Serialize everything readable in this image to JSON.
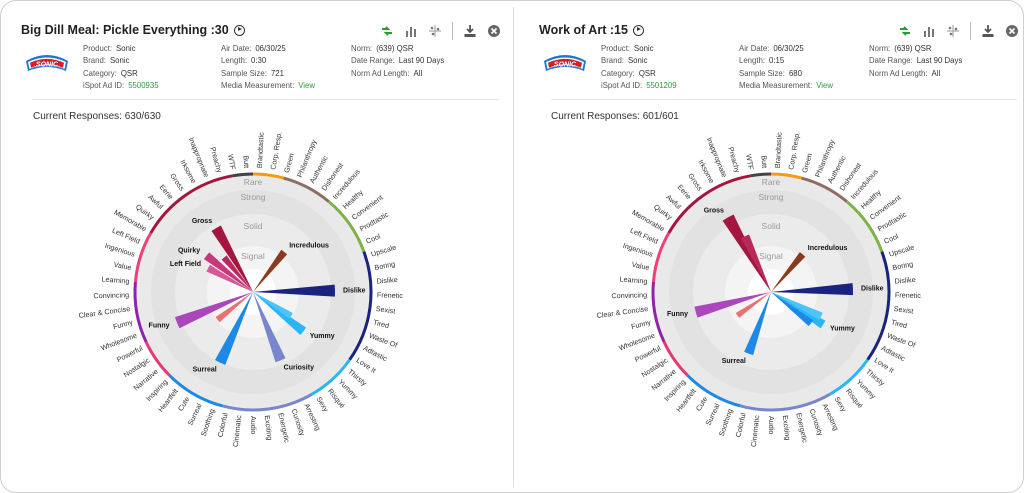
{
  "panels": [
    {
      "title": "Big Dill Meal: Pickle Everything :30",
      "logo_text": "SONIC",
      "meta": {
        "product_label": "Product:",
        "product": "Sonic",
        "brand_label": "Brand:",
        "brand": "Sonic",
        "category_label": "Category:",
        "category": "QSR",
        "ad_id_label": "iSpot Ad ID:",
        "ad_id": "5500935",
        "air_date_label": "Air Date:",
        "air_date": "06/30/25",
        "length_label": "Length:",
        "length": "0:30",
        "sample_label": "Sample Size:",
        "sample": "721",
        "media_label": "Media Measurement:",
        "media": "View",
        "norm_label": "Norm:",
        "norm": "(639) QSR",
        "date_range_label": "Date Range:",
        "date_range": "Last 90 Days",
        "norm_len_label": "Norm Ad Length:",
        "norm_len": "All"
      },
      "responses": "Current Responses: 630/630",
      "spikes": [
        {
          "label": "Gross",
          "angle": -30,
          "value": 0.9,
          "color": "#a3173f",
          "labeled": true
        },
        {
          "label": "Quirky",
          "angle": -52,
          "value": 0.72,
          "color": "#c8367b",
          "labeled": true
        },
        {
          "label": "Left Field",
          "angle": -62,
          "value": 0.62,
          "color": "#d45a96",
          "labeled": true
        },
        {
          "label": "",
          "angle": -40,
          "value": 0.55,
          "color": "#b82a5a",
          "labeled": false
        },
        {
          "label": "Incredulous",
          "angle": 38,
          "value": 0.62,
          "color": "#8a3a1f",
          "labeled": true
        },
        {
          "label": "Dislike",
          "angle": 89,
          "value": 1.0,
          "color": "#1a237e",
          "labeled": true
        },
        {
          "label": "Yummy",
          "angle": 128,
          "value": 0.78,
          "color": "#29b6f6",
          "labeled": true
        },
        {
          "label": "",
          "angle": 122,
          "value": 0.55,
          "color": "#4fc3f7",
          "labeled": false
        },
        {
          "label": "Curiosity",
          "angle": 158,
          "value": 0.9,
          "color": "#7986cb",
          "labeled": true
        },
        {
          "label": "Surreal",
          "angle": 205,
          "value": 0.95,
          "color": "#1e88e5",
          "labeled": true
        },
        {
          "label": "",
          "angle": 232,
          "value": 0.55,
          "color": "#e57373",
          "labeled": false
        },
        {
          "label": "Funny",
          "angle": 248,
          "value": 1.0,
          "color": "#ab47bc",
          "labeled": true
        }
      ]
    },
    {
      "title": "Work of Art :15",
      "logo_text": "SONIC",
      "meta": {
        "product_label": "Product:",
        "product": "Sonic",
        "brand_label": "Brand:",
        "brand": "Sonic",
        "category_label": "Category:",
        "category": "QSR",
        "ad_id_label": "iSpot Ad ID:",
        "ad_id": "5501209",
        "air_date_label": "Air Date:",
        "air_date": "06/30/25",
        "length_label": "Length:",
        "length": "0:15",
        "sample_label": "Sample Size:",
        "sample": "680",
        "media_label": "Media Measurement:",
        "media": "View",
        "norm_label": "Norm:",
        "norm": "(639) QSR",
        "date_range_label": "Date Range:",
        "date_range": "Last 90 Days",
        "norm_len_label": "Norm Ad Length:",
        "norm_len": "All"
      },
      "responses": "Current Responses: 601/601",
      "spikes": [
        {
          "label": "Gross",
          "angle": -30,
          "value": 1.05,
          "color": "#a3173f",
          "labeled": true
        },
        {
          "label": "",
          "angle": -25,
          "value": 0.75,
          "color": "#b82a5a",
          "labeled": false
        },
        {
          "label": "Incredulous",
          "angle": 40,
          "value": 0.6,
          "color": "#8a3a1f",
          "labeled": true
        },
        {
          "label": "Dislike",
          "angle": 88,
          "value": 1.0,
          "color": "#1a237e",
          "labeled": true
        },
        {
          "label": "Yummy",
          "angle": 122,
          "value": 0.75,
          "color": "#29b6f6",
          "labeled": true
        },
        {
          "label": "",
          "angle": 116,
          "value": 0.68,
          "color": "#4fc3f7",
          "labeled": false
        },
        {
          "label": "",
          "angle": 128,
          "value": 0.62,
          "color": "#1e88e5",
          "labeled": false
        },
        {
          "label": "Surreal",
          "angle": 200,
          "value": 0.8,
          "color": "#1e88e5",
          "labeled": true
        },
        {
          "label": "",
          "angle": 235,
          "value": 0.5,
          "color": "#e57373",
          "labeled": false
        },
        {
          "label": "Funny",
          "angle": 255,
          "value": 0.95,
          "color": "#ab47bc",
          "labeled": true
        }
      ]
    }
  ],
  "wheel": {
    "ring_labels": [
      "Rare",
      "Strong",
      "Solid",
      "Signal"
    ],
    "emotions": [
      "Brandtastic",
      "Corp. Resp.",
      "Green",
      "Philanthropy",
      "Authentic",
      "Dishonest",
      "Incredulous",
      "Healthy",
      "Convenient",
      "Prodtastic",
      "Cool",
      "Upscale",
      "Boring",
      "Dislike",
      "Frenetic",
      "Sexist",
      "Tired",
      "Waste Of",
      "Adtastic",
      "Love It",
      "Thirsty",
      "Yummy",
      "Risqué",
      "Sexy",
      "Arresting",
      "Curiosity",
      "Energetic",
      "Exciting",
      "Audio",
      "Cinematic",
      "Colorful",
      "Soothing",
      "Surreal",
      "Cute",
      "Heartfelt",
      "Inspiring",
      "Narrative",
      "Nostalgic",
      "Powerful",
      "Wholesome",
      "Funny",
      "Clear & Concise",
      "Convincing",
      "Learning",
      "Value",
      "Ingenious",
      "Left Field",
      "Memorable",
      "Quirky",
      "Awful",
      "Eerie",
      "Gross",
      "Irksome",
      "Inappropriate",
      "Preachy",
      "WTF",
      "Butt"
    ],
    "segments": [
      {
        "from": 0,
        "to": 15,
        "color": "#f39c12"
      },
      {
        "from": 15,
        "to": 40,
        "color": "#8d6e63"
      },
      {
        "from": 40,
        "to": 70,
        "color": "#7cb342"
      },
      {
        "from": 70,
        "to": 125,
        "color": "#1a237e"
      },
      {
        "from": 125,
        "to": 150,
        "color": "#29b6f6"
      },
      {
        "from": 150,
        "to": 195,
        "color": "#7986cb"
      },
      {
        "from": 195,
        "to": 225,
        "color": "#1e88e5"
      },
      {
        "from": 225,
        "to": 245,
        "color": "#e53971"
      },
      {
        "from": 245,
        "to": 275,
        "color": "#8e24aa"
      },
      {
        "from": 275,
        "to": 300,
        "color": "#ec407a"
      },
      {
        "from": 300,
        "to": 350,
        "color": "#a3173f"
      },
      {
        "from": 350,
        "to": 360,
        "color": "#444444"
      }
    ]
  },
  "colors": {
    "accent_green": "#2e9a35",
    "logo_red": "#d32027",
    "logo_blue": "#1976d2"
  }
}
